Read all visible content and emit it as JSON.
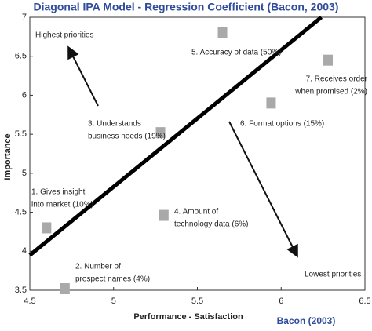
{
  "chart_data": {
    "type": "scatter",
    "title": "Diagonal IPA Model - Regression Coefficient (Bacon, 2003)",
    "x_label": "Performance - Satisfaction",
    "y_label": "Importance",
    "source": "Bacon (2003)",
    "annotations": [
      "Highest priorities",
      "Lowest priorities"
    ],
    "color": "#a9a9a9",
    "x": [
      4.6,
      4.71,
      5.28,
      5.3,
      5.65,
      5.94,
      6.28
    ],
    "values": [
      4.3,
      3.52,
      5.52,
      4.46,
      6.8,
      5.9,
      6.45
    ],
    "labels": [
      [
        "1. Gives insight",
        "into market (10%)"
      ],
      [
        "2. Number of",
        "prospect names (4%)"
      ],
      [
        "3. Understands",
        "business needs (19%)"
      ],
      [
        "4. Amount of",
        "technology data (6%)"
      ],
      [
        "5. Accuracy of data (50%)"
      ],
      [
        "6. Format options (15%)"
      ],
      [
        "7. Receives order",
        "when promised (2%)"
      ]
    ],
    "diagonal": {
      "x": [
        4.5,
        6.24
      ],
      "y": [
        3.95,
        7
      ]
    },
    "xlim": [
      4.5,
      6.5
    ],
    "xticks": [
      4.5,
      5,
      5.5,
      6,
      6.5
    ],
    "ylim": [
      3.5,
      7
    ],
    "yticks": [
      3.5,
      4,
      4.5,
      5,
      5.5,
      6,
      6.5,
      7
    ]
  }
}
